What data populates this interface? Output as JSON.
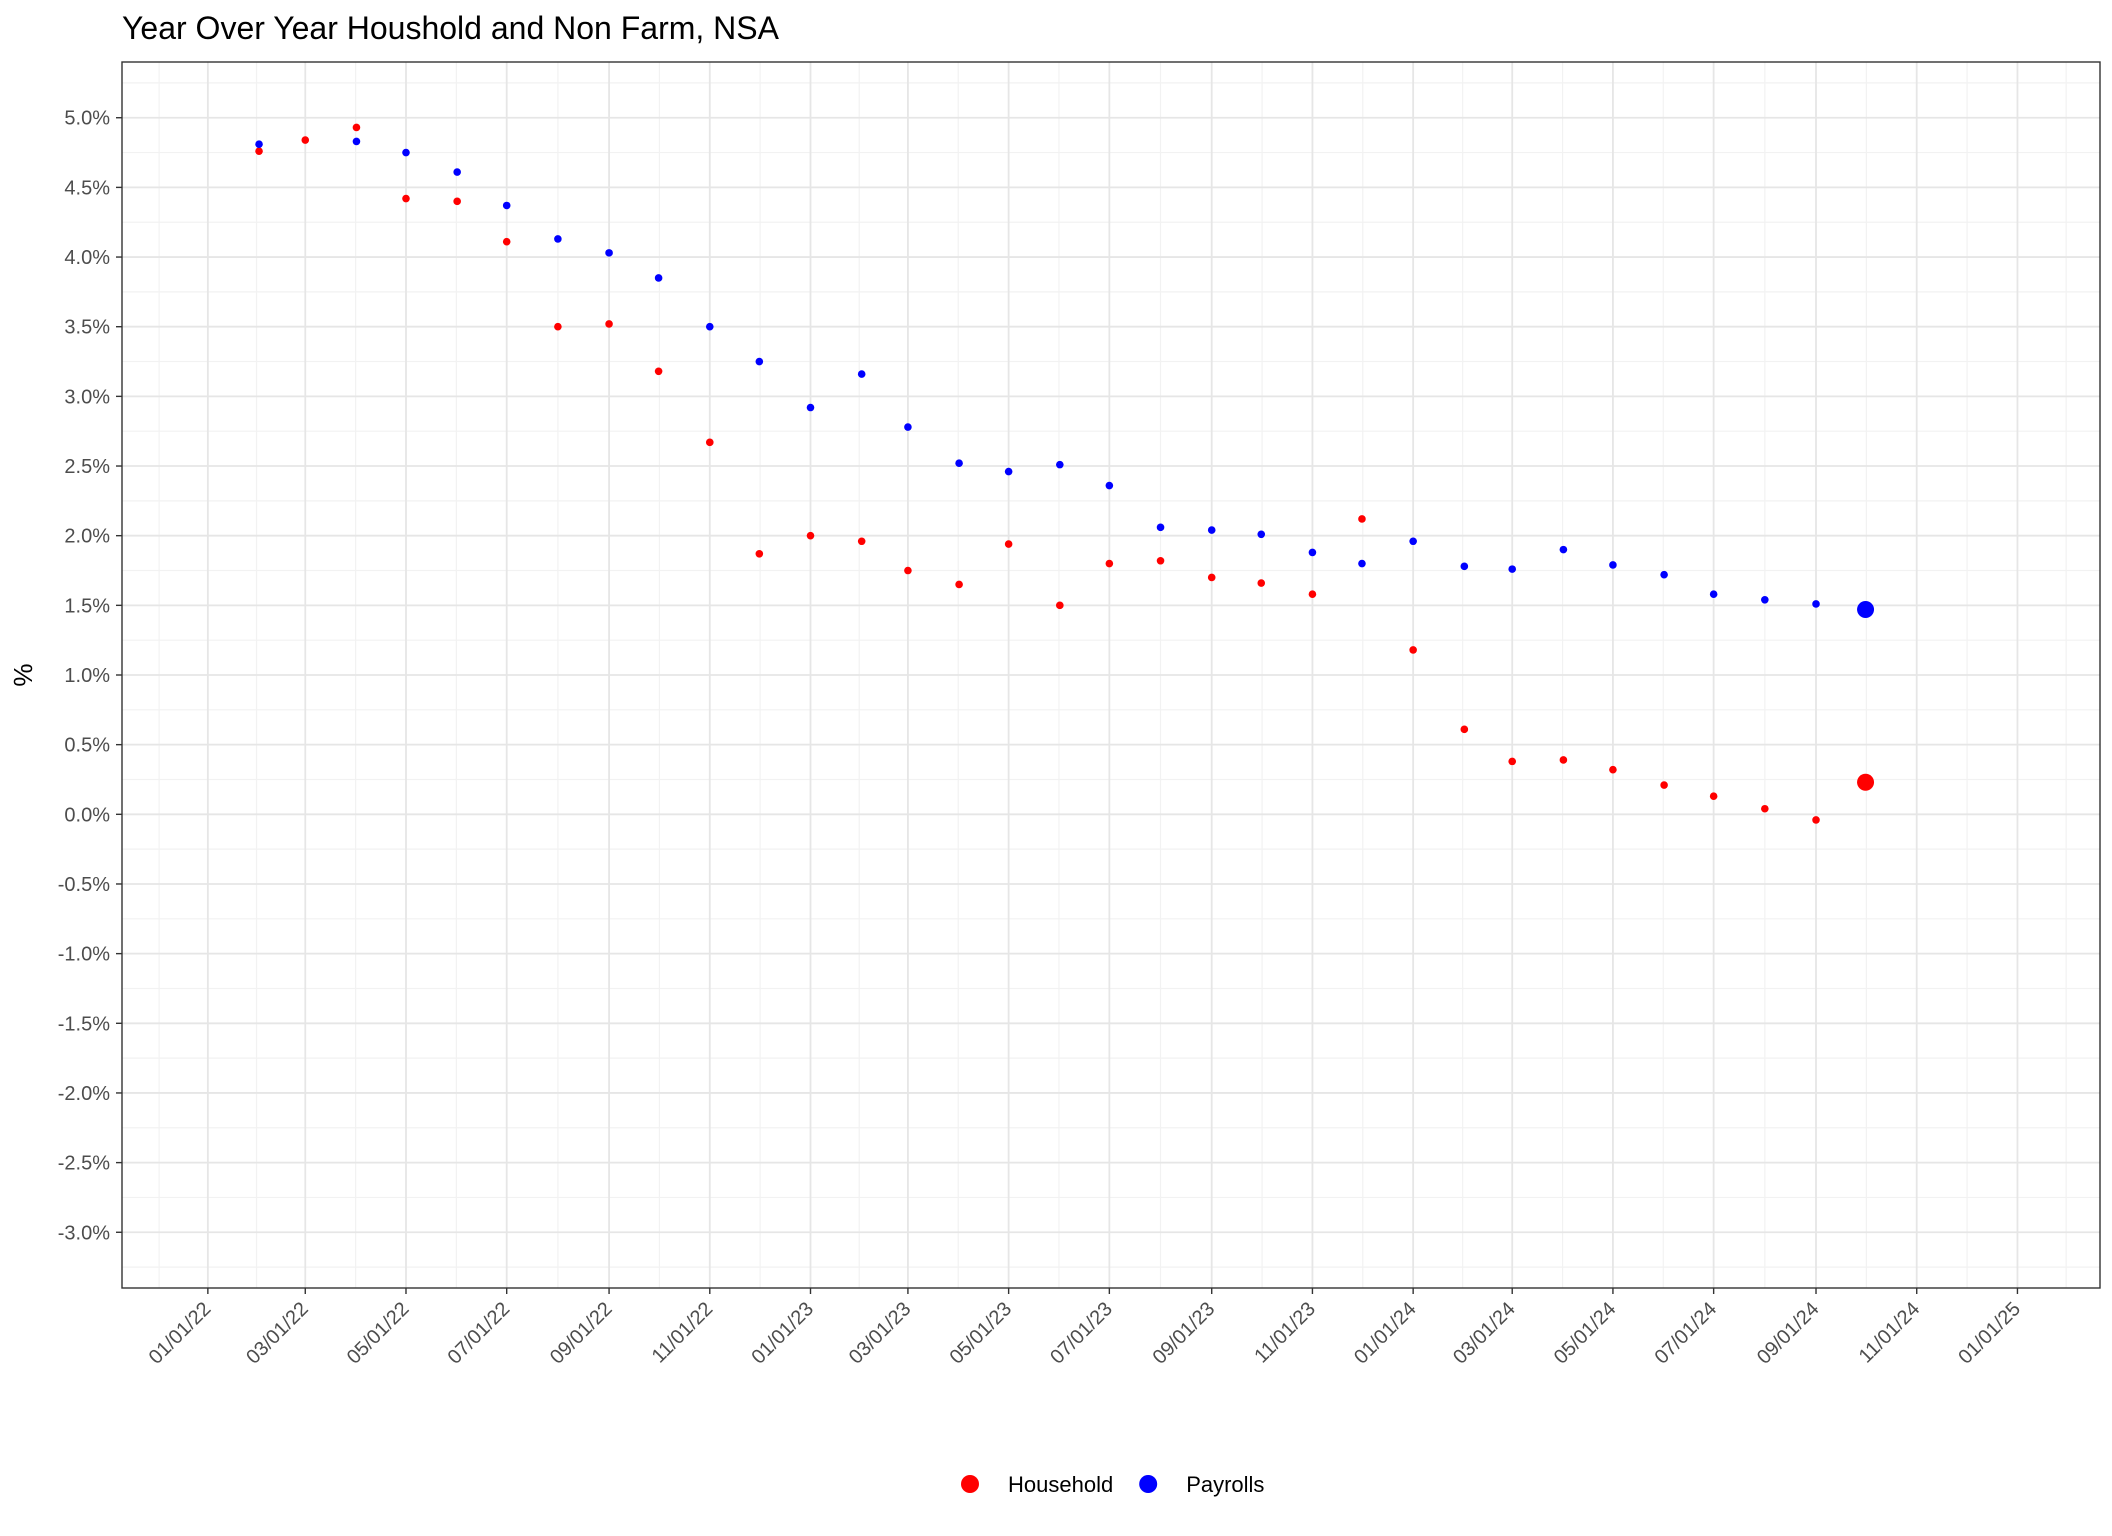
{
  "chart_data": {
    "type": "scatter",
    "title": "Year Over Year Houshold and Non Farm, NSA",
    "xlabel": "",
    "ylabel": "%",
    "x_axis": {
      "type": "date",
      "range": [
        "2021-11-10",
        "2025-02-20"
      ],
      "ticks": [
        "01/01/22",
        "03/01/22",
        "05/01/22",
        "07/01/22",
        "09/01/22",
        "11/01/22",
        "01/01/23",
        "03/01/23",
        "05/01/23",
        "07/01/23",
        "09/01/23",
        "11/01/23",
        "01/01/24",
        "03/01/24",
        "05/01/24",
        "07/01/24",
        "09/01/24",
        "11/01/24",
        "01/01/25"
      ]
    },
    "y_axis": {
      "range": [
        -3.4,
        5.4
      ],
      "ticks": [
        "5.0%",
        "4.5%",
        "4.0%",
        "3.5%",
        "3.0%",
        "2.5%",
        "2.0%",
        "1.5%",
        "1.0%",
        "0.5%",
        "0.0%",
        "-0.5%",
        "-1.0%",
        "-1.5%",
        "-2.0%",
        "-2.5%",
        "-3.0%"
      ]
    },
    "grid": true,
    "legend_position": "bottom",
    "x": [
      "2022-02-01",
      "2022-03-01",
      "2022-04-01",
      "2022-05-01",
      "2022-06-01",
      "2022-07-01",
      "2022-08-01",
      "2022-09-01",
      "2022-10-01",
      "2022-11-01",
      "2022-12-01",
      "2023-01-01",
      "2023-02-01",
      "2023-03-01",
      "2023-04-01",
      "2023-05-01",
      "2023-06-01",
      "2023-07-01",
      "2023-08-01",
      "2023-09-01",
      "2023-10-01",
      "2023-11-01",
      "2023-12-01",
      "2024-01-01",
      "2024-02-01",
      "2024-03-01",
      "2024-04-01",
      "2024-05-01",
      "2024-06-01",
      "2024-07-01",
      "2024-08-01",
      "2024-09-01",
      "2024-10-01"
    ],
    "series": [
      {
        "name": "Household",
        "color": "#ff0000",
        "values": [
          4.76,
          4.84,
          4.93,
          4.42,
          4.4,
          4.11,
          3.5,
          3.52,
          3.18,
          2.67,
          1.87,
          2.0,
          1.96,
          1.75,
          1.65,
          1.94,
          1.5,
          1.8,
          1.82,
          1.7,
          1.66,
          1.58,
          2.12,
          1.18,
          0.61,
          0.38,
          0.39,
          0.32,
          0.21,
          0.13,
          0.04,
          -0.04,
          0.23
        ]
      },
      {
        "name": "Payrolls",
        "color": "#0000ff",
        "values": [
          4.81,
          null,
          4.83,
          4.75,
          4.61,
          4.37,
          4.13,
          4.03,
          3.85,
          3.5,
          3.25,
          2.92,
          3.16,
          2.78,
          2.52,
          2.46,
          2.51,
          2.36,
          2.06,
          2.04,
          2.01,
          1.88,
          1.8,
          1.96,
          1.78,
          1.76,
          1.9,
          1.79,
          1.72,
          1.58,
          1.54,
          1.51,
          1.47
        ]
      }
    ],
    "highlight_last_point": true
  },
  "legend": {
    "items": [
      {
        "label": "Household",
        "color": "#ff0000"
      },
      {
        "label": "Payrolls",
        "color": "#0000ff"
      }
    ]
  }
}
